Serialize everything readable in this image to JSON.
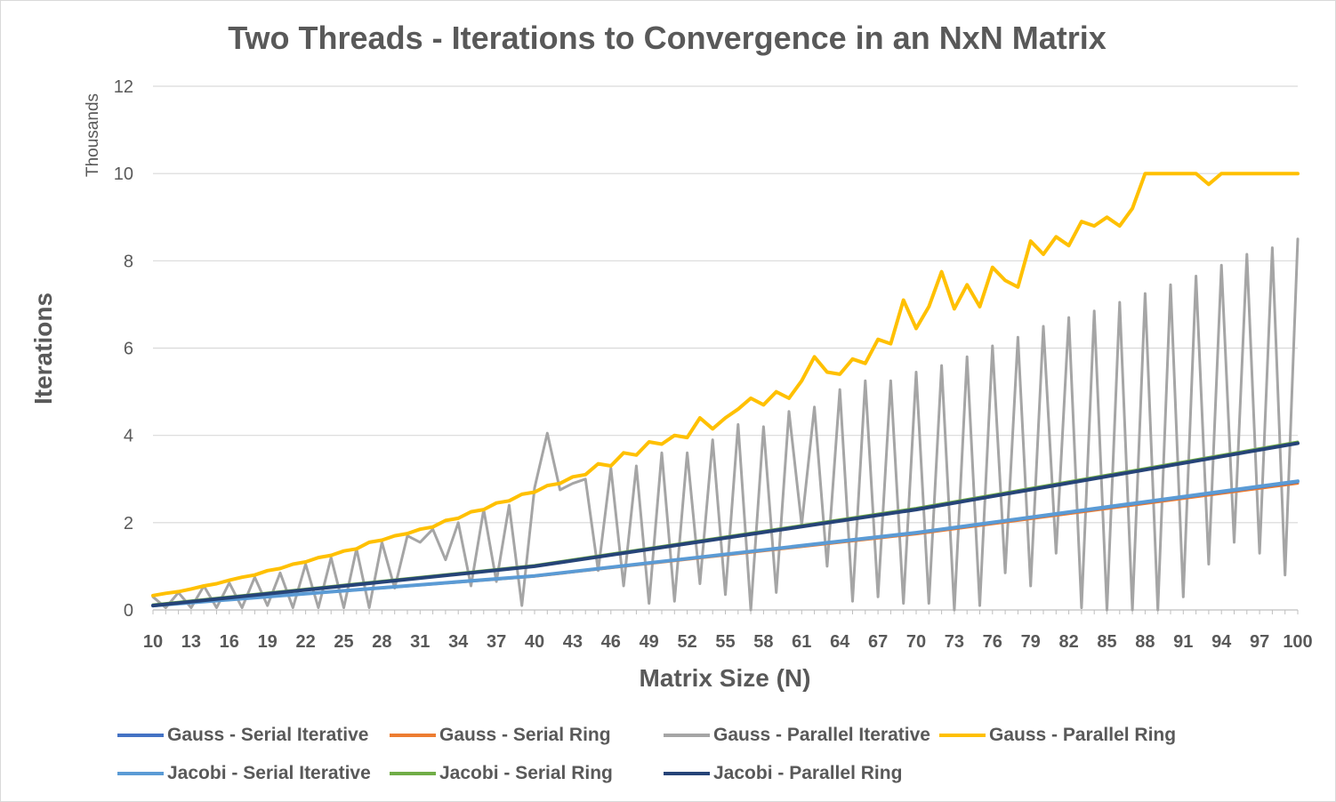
{
  "chart_data": {
    "type": "line",
    "title": "Two Threads - Iterations to Convergence in an NxN Matrix",
    "xlabel": "Matrix Size (N)",
    "ylabel": "Iterations",
    "yunits": "Thousands",
    "ylim": [
      0,
      12
    ],
    "yticks": [
      "0",
      "2",
      "4",
      "6",
      "8",
      "10",
      "12"
    ],
    "xlim": [
      10,
      100
    ],
    "xticks": [
      "10",
      "13",
      "16",
      "19",
      "22",
      "25",
      "28",
      "31",
      "34",
      "37",
      "40",
      "43",
      "46",
      "49",
      "52",
      "55",
      "58",
      "61",
      "64",
      "67",
      "70",
      "73",
      "76",
      "79",
      "82",
      "85",
      "88",
      "91",
      "94",
      "97",
      "100"
    ],
    "grid": "horizontal",
    "legend_position": "bottom",
    "series": [
      {
        "name": "Gauss - Serial Iterative",
        "color": "#4472c4",
        "width": 3,
        "x": [
          10,
          40,
          70,
          100
        ],
        "y": [
          0.1,
          0.78,
          1.76,
          2.93
        ]
      },
      {
        "name": "Gauss - Serial Ring",
        "color": "#ed7d31",
        "width": 3,
        "x": [
          10,
          40,
          70,
          100
        ],
        "y": [
          0.1,
          0.77,
          1.74,
          2.9
        ]
      },
      {
        "name": "Gauss - Parallel Iterative",
        "color": "#a5a5a5",
        "width": 3,
        "x": [
          10,
          11,
          12,
          13,
          14,
          15,
          16,
          17,
          18,
          19,
          20,
          21,
          22,
          23,
          24,
          25,
          26,
          27,
          28,
          29,
          30,
          31,
          32,
          33,
          34,
          35,
          36,
          37,
          38,
          39,
          40,
          41,
          42,
          43,
          44,
          45,
          46,
          47,
          48,
          49,
          50,
          51,
          52,
          53,
          54,
          55,
          56,
          57,
          58,
          59,
          60,
          61,
          62,
          63,
          64,
          65,
          66,
          67,
          68,
          69,
          70,
          71,
          72,
          73,
          74,
          75,
          76,
          77,
          78,
          79,
          80,
          81,
          82,
          83,
          84,
          85,
          86,
          87,
          88,
          89,
          90,
          91,
          92,
          93,
          94,
          95,
          96,
          97,
          98,
          99,
          100
        ],
        "y": [
          0.3,
          0.05,
          0.4,
          0.05,
          0.55,
          0.05,
          0.62,
          0.05,
          0.75,
          0.1,
          0.85,
          0.05,
          1.05,
          0.05,
          1.2,
          0.05,
          1.4,
          0.05,
          1.55,
          0.5,
          1.7,
          1.55,
          1.85,
          1.15,
          2.0,
          0.55,
          2.3,
          0.65,
          2.4,
          0.1,
          2.8,
          4.05,
          2.75,
          2.9,
          3.0,
          0.9,
          3.25,
          0.55,
          3.3,
          0.15,
          3.6,
          0.2,
          3.6,
          0.6,
          3.9,
          0.35,
          4.25,
          0.0,
          4.2,
          0.4,
          4.55,
          1.95,
          4.65,
          1.0,
          5.05,
          0.2,
          5.25,
          0.3,
          5.25,
          0.15,
          5.45,
          0.15,
          5.6,
          0.0,
          5.8,
          0.1,
          6.05,
          0.85,
          6.25,
          0.55,
          6.5,
          1.3,
          6.7,
          0.05,
          6.85,
          0.0,
          7.05,
          0.0,
          7.25,
          0.0,
          7.45,
          0.3,
          7.65,
          1.05,
          7.9,
          1.55,
          8.15,
          1.3,
          8.3,
          0.8,
          8.5
        ]
      },
      {
        "name": "Gauss - Parallel Ring",
        "color": "#ffc000",
        "width": 4,
        "x": [
          10,
          11,
          12,
          13,
          14,
          15,
          16,
          17,
          18,
          19,
          20,
          21,
          22,
          23,
          24,
          25,
          26,
          27,
          28,
          29,
          30,
          31,
          32,
          33,
          34,
          35,
          36,
          37,
          38,
          39,
          40,
          41,
          42,
          43,
          44,
          45,
          46,
          47,
          48,
          49,
          50,
          51,
          52,
          53,
          54,
          55,
          56,
          57,
          58,
          59,
          60,
          61,
          62,
          63,
          64,
          65,
          66,
          67,
          68,
          69,
          70,
          71,
          72,
          73,
          74,
          75,
          76,
          77,
          78,
          79,
          80,
          81,
          82,
          83,
          84,
          85,
          86,
          87,
          88,
          89,
          90,
          91,
          92,
          93,
          94,
          95,
          96,
          97,
          98,
          99,
          100
        ],
        "y": [
          0.33,
          0.38,
          0.42,
          0.48,
          0.55,
          0.6,
          0.68,
          0.75,
          0.8,
          0.9,
          0.95,
          1.05,
          1.1,
          1.2,
          1.25,
          1.35,
          1.4,
          1.55,
          1.6,
          1.7,
          1.75,
          1.85,
          1.9,
          2.05,
          2.1,
          2.25,
          2.3,
          2.45,
          2.5,
          2.65,
          2.7,
          2.85,
          2.9,
          3.05,
          3.1,
          3.35,
          3.3,
          3.6,
          3.55,
          3.85,
          3.8,
          4.0,
          3.95,
          4.4,
          4.15,
          4.4,
          4.6,
          4.85,
          4.7,
          5.0,
          4.85,
          5.25,
          5.8,
          5.45,
          5.4,
          5.75,
          5.65,
          6.2,
          6.1,
          7.1,
          6.45,
          6.95,
          7.75,
          6.9,
          7.45,
          6.95,
          7.85,
          7.55,
          7.4,
          8.45,
          8.15,
          8.55,
          8.35,
          8.9,
          8.8,
          9.0,
          8.8,
          9.2,
          10.0,
          10.0,
          10.0,
          10.0,
          10.0,
          9.75,
          10.0,
          10.0,
          10.0,
          10.0,
          10.0,
          10.0,
          10.0
        ]
      },
      {
        "name": "Jacobi - Serial Iterative",
        "color": "#5b9bd5",
        "width": 4,
        "x": [
          10,
          40,
          70,
          100
        ],
        "y": [
          0.1,
          0.78,
          1.77,
          2.95
        ]
      },
      {
        "name": "Jacobi - Serial Ring",
        "color": "#70ad47",
        "width": 3,
        "x": [
          10,
          40,
          70,
          100
        ],
        "y": [
          0.12,
          1.02,
          2.33,
          3.85
        ]
      },
      {
        "name": "Jacobi - Parallel Ring",
        "color": "#264478",
        "width": 4,
        "x": [
          10,
          40,
          70,
          100
        ],
        "y": [
          0.1,
          1.0,
          2.3,
          3.82
        ]
      }
    ]
  }
}
